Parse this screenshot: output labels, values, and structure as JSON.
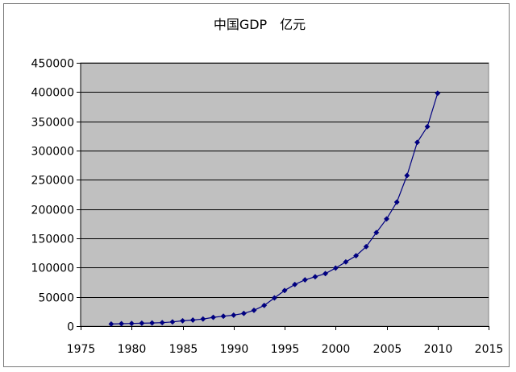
{
  "chart_data": {
    "type": "line",
    "title": "中国GDP　亿元",
    "xlabel": "",
    "ylabel": "",
    "xlim": [
      1975,
      2015
    ],
    "ylim": [
      0,
      450000
    ],
    "x_ticks": [
      1975,
      1980,
      1985,
      1990,
      1995,
      2000,
      2005,
      2010,
      2015
    ],
    "y_ticks": [
      0,
      50000,
      100000,
      150000,
      200000,
      250000,
      300000,
      350000,
      400000,
      450000
    ],
    "x_tick_labels": [
      "1975",
      "1980",
      "1985",
      "1990",
      "1995",
      "2000",
      "2005",
      "2010",
      "2015"
    ],
    "y_tick_labels": [
      "0",
      "50000",
      "100000",
      "150000",
      "200000",
      "250000",
      "300000",
      "350000",
      "400000",
      "450000"
    ],
    "grid": "horizontal",
    "plot_background": "#c0c0c0",
    "series_color": "#000080",
    "series": [
      {
        "x": [
          1978,
          1979,
          1980,
          1981,
          1982,
          1983,
          1984,
          1985,
          1986,
          1987,
          1988,
          1989,
          1990,
          1991,
          1992,
          1993,
          1994,
          1995,
          1996,
          1997,
          1998,
          1999,
          2000,
          2001,
          2002,
          2003,
          2004,
          2005,
          2006,
          2007,
          2008,
          2009,
          2010
        ],
        "values": [
          3645,
          4063,
          4546,
          4892,
          5323,
          5963,
          7208,
          9016,
          10275,
          12059,
          15043,
          16992,
          18668,
          21781,
          26923,
          35334,
          48198,
          60794,
          71177,
          78973,
          84402,
          89677,
          99215,
          109655,
          120333,
          135823,
          159878,
          183217,
          211924,
          257306,
          314045,
          340903,
          397983
        ]
      }
    ]
  }
}
